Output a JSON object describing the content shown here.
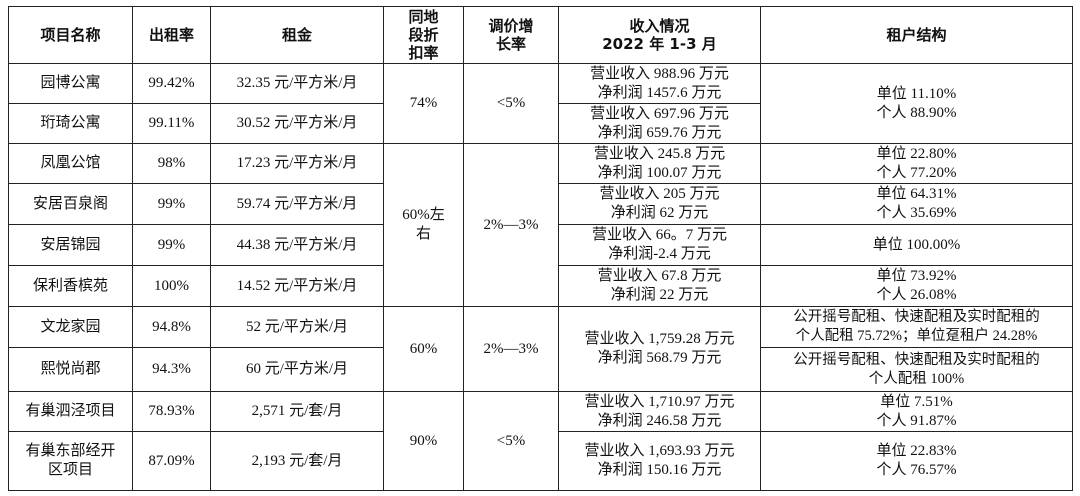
{
  "headers": {
    "name": "项目名称",
    "occupancy": "出租率",
    "rent": "租金",
    "discount": [
      "同地",
      "段折",
      "扣率"
    ],
    "growth": [
      "调价增",
      "长率"
    ],
    "income": [
      "收入情况",
      "2022 年 1-3 月"
    ],
    "tenants": "租户结构"
  },
  "rows": [
    {
      "name": [
        "园博公寓"
      ],
      "occupancy": "99.42%",
      "rent": "32.35 元/平方米/月",
      "income": [
        "营业收入 988.96 万元",
        "净利润 1457.6 万元"
      ]
    },
    {
      "name": [
        "珩琦公寓"
      ],
      "occupancy": "99.11%",
      "rent": "30.52 元/平方米/月",
      "income": [
        "营业收入 697.96 万元",
        "净利润 659.76 万元"
      ]
    },
    {
      "name": [
        "凤凰公馆"
      ],
      "occupancy": "98%",
      "rent": "17.23 元/平方米/月",
      "income": [
        "营业收入 245.8 万元",
        "净利润 100.07 万元"
      ],
      "tenants": [
        "单位 22.80%",
        "个人 77.20%"
      ]
    },
    {
      "name": [
        "安居百泉阁"
      ],
      "occupancy": "99%",
      "rent": "59.74 元/平方米/月",
      "income": [
        "营业收入 205 万元",
        "净利润 62 万元"
      ],
      "tenants": [
        "单位 64.31%",
        "个人 35.69%"
      ]
    },
    {
      "name": [
        "安居锦园"
      ],
      "occupancy": "99%",
      "rent": "44.38 元/平方米/月",
      "income": [
        "营业收入 66。7 万元",
        "净利润-2.4 万元"
      ],
      "tenants": [
        "单位 100.00%"
      ]
    },
    {
      "name": [
        "保利香槟苑"
      ],
      "occupancy": "100%",
      "rent": "14.52 元/平方米/月",
      "income": [
        "营业收入 67.8 万元",
        "净利润 22 万元"
      ],
      "tenants": [
        "单位 73.92%",
        "个人 26.08%"
      ]
    },
    {
      "name": [
        "文龙家园"
      ],
      "occupancy": "94.8%",
      "rent": "52 元/平方米/月",
      "tenants": [
        "公开摇号配租、快速配租及实时配租的",
        "个人配租 75.72%；单位趸租户 24.28%"
      ]
    },
    {
      "name": [
        "熙悦尚郡"
      ],
      "occupancy": "94.3%",
      "rent": "60 元/平方米/月",
      "tenants": [
        "公开摇号配租、快速配租及实时配租的",
        "个人配租 100%"
      ]
    },
    {
      "name": [
        "有巢泗泾项目"
      ],
      "occupancy": "78.93%",
      "rent": "2,571 元/套/月",
      "income": [
        "营业收入 1,710.97 万元",
        "净利润 246.58 万元"
      ],
      "tenants": [
        "单位 7.51%",
        "个人 91.87%"
      ]
    },
    {
      "name": [
        "有巢东部经开",
        "区项目"
      ],
      "occupancy": "87.09%",
      "rent": "2,193 元/套/月",
      "income": [
        "营业收入 1,693.93 万元",
        "净利润 150.16 万元"
      ],
      "tenants": [
        "单位 22.83%",
        "个人 76.57%"
      ]
    }
  ],
  "groups": {
    "g1": {
      "discount": [
        "74%"
      ],
      "growth": "<5%",
      "tenants": [
        "单位 11.10%",
        "个人 88.90%"
      ]
    },
    "g2": {
      "discount": [
        "60%左",
        "右"
      ],
      "growth": "2%—3%"
    },
    "g3": {
      "discount": [
        "60%"
      ],
      "growth": "2%—3%",
      "income": [
        "营业收入 1,759.28 万元",
        "净利润 568.79 万元"
      ]
    },
    "g4": {
      "discount": [
        "90%"
      ],
      "growth": "<5%"
    }
  }
}
